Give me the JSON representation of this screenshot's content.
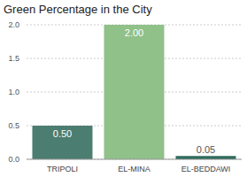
{
  "chart_data": {
    "type": "bar",
    "title": "Green Percentage in the City",
    "categories": [
      "TRIPOLI",
      "EL-MINA",
      "EL-BEDDAWI"
    ],
    "values": [
      0.5,
      2.0,
      0.05
    ],
    "value_labels": [
      "0.50",
      "2.00",
      "0.05"
    ],
    "colors": [
      "#4b7d70",
      "#8fc189",
      "#2f6b5d"
    ],
    "ylim": [
      0,
      2
    ],
    "yticks": [
      {
        "value": 0,
        "label": "0.0"
      },
      {
        "value": 0.5,
        "label": "0.5"
      },
      {
        "value": 1,
        "label": "1.0"
      },
      {
        "value": 1.5,
        "label": "1.5"
      },
      {
        "value": 2,
        "label": "2.0"
      }
    ],
    "grid": true,
    "data_labels": true
  }
}
